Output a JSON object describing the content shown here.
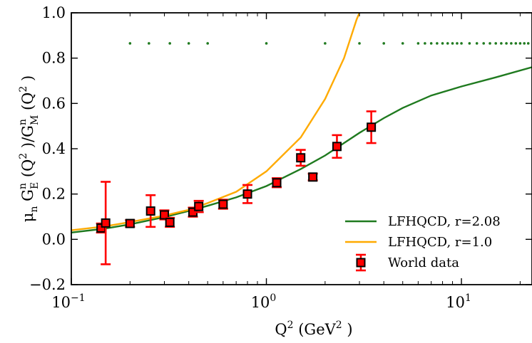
{
  "chart_data": {
    "type": "scatter",
    "x_scale": "log",
    "xlim": [
      0.1,
      23
    ],
    "ylim": [
      -0.2,
      1.0
    ],
    "grid": false,
    "legend_position": "lower-right",
    "xlabel": {
      "main": "Q",
      "sup1": "2",
      "mid": " (GeV",
      "sup2": "2",
      "end": " )"
    },
    "ylabel": "μn GE^n (Q²) / GM^n (Q²)",
    "ylabel_parts": {
      "mu": "μ",
      "mu_sub": "n",
      "ge": "G",
      "ge_sup": "n",
      "ge_sub": "E",
      "ge_arg": "(Q",
      "ge_arg_sup": "2",
      "ge_arg_end": " )/",
      "gm": "G",
      "gm_sup": "n",
      "gm_sub": "M",
      "gm_arg": "(Q",
      "gm_arg_sup": "2",
      "gm_arg_end": " )"
    },
    "x_ticks": [
      {
        "value": 0.1,
        "base": "10",
        "exp": "−1"
      },
      {
        "value": 1.0,
        "base": "10",
        "exp": "0"
      },
      {
        "value": 10.0,
        "base": "10",
        "exp": "1"
      }
    ],
    "y_ticks": [
      {
        "value": -0.2,
        "label": "−0.2"
      },
      {
        "value": 0.0,
        "label": "0.0"
      },
      {
        "value": 0.2,
        "label": "0.2"
      },
      {
        "value": 0.4,
        "label": "0.4"
      },
      {
        "value": 0.6,
        "label": "0.6"
      },
      {
        "value": 0.8,
        "label": "0.8"
      },
      {
        "value": 1.0,
        "label": "1.0"
      }
    ],
    "series": [
      {
        "name": "LFHQCD, r=2.08",
        "kind": "line",
        "color": "#1f7a1f",
        "points": [
          [
            0.1,
            0.03
          ],
          [
            0.15,
            0.048
          ],
          [
            0.2,
            0.066
          ],
          [
            0.3,
            0.098
          ],
          [
            0.4,
            0.125
          ],
          [
            0.5,
            0.148
          ],
          [
            0.7,
            0.185
          ],
          [
            1.0,
            0.235
          ],
          [
            1.5,
            0.31
          ],
          [
            2.0,
            0.37
          ],
          [
            2.5,
            0.425
          ],
          [
            3.0,
            0.47
          ],
          [
            4.0,
            0.535
          ],
          [
            5.0,
            0.58
          ],
          [
            7.0,
            0.635
          ],
          [
            10.0,
            0.675
          ],
          [
            15.0,
            0.715
          ],
          [
            23.0,
            0.76
          ]
        ]
      },
      {
        "name": "LFHQCD, r=1.0",
        "kind": "line",
        "color": "#ffaa00",
        "points": [
          [
            0.1,
            0.04
          ],
          [
            0.15,
            0.058
          ],
          [
            0.2,
            0.076
          ],
          [
            0.3,
            0.105
          ],
          [
            0.4,
            0.13
          ],
          [
            0.5,
            0.16
          ],
          [
            0.7,
            0.21
          ],
          [
            1.0,
            0.3
          ],
          [
            1.5,
            0.45
          ],
          [
            2.0,
            0.62
          ],
          [
            2.5,
            0.8
          ],
          [
            2.9,
            0.97
          ],
          [
            3.0,
            1.0
          ]
        ]
      },
      {
        "name": "World data",
        "kind": "errorbar",
        "marker_color": "#ff0000",
        "edge_color": "#000000",
        "error_color": "#ff0000",
        "points": [
          {
            "x": 0.142,
            "y": 0.05,
            "err": 0.02
          },
          {
            "x": 0.15,
            "y": 0.072,
            "err": 0.182
          },
          {
            "x": 0.2,
            "y": 0.07,
            "err": 0.015
          },
          {
            "x": 0.255,
            "y": 0.125,
            "err": 0.07
          },
          {
            "x": 0.3,
            "y": 0.108,
            "err": 0.02
          },
          {
            "x": 0.32,
            "y": 0.075,
            "err": 0.02
          },
          {
            "x": 0.42,
            "y": 0.12,
            "err": 0.02
          },
          {
            "x": 0.45,
            "y": 0.145,
            "err": 0.025
          },
          {
            "x": 0.6,
            "y": 0.155,
            "err": 0.02
          },
          {
            "x": 0.8,
            "y": 0.2,
            "err": 0.04
          },
          {
            "x": 1.13,
            "y": 0.25,
            "err": 0.02
          },
          {
            "x": 1.5,
            "y": 0.36,
            "err": 0.035
          },
          {
            "x": 1.73,
            "y": 0.275,
            "err": 0.015
          },
          {
            "x": 2.3,
            "y": 0.41,
            "err": 0.05
          },
          {
            "x": 3.45,
            "y": 0.495,
            "err": 0.07
          }
        ]
      },
      {
        "kind": "dotted",
        "color": "#1f7a1f",
        "y": 0.865,
        "x": [
          0.2,
          0.25,
          0.32,
          0.4,
          0.5,
          1.0,
          2.0,
          3.0,
          4.0,
          5.0,
          6.0,
          6.5,
          7.0,
          7.5,
          8.0,
          8.5,
          9.0,
          9.5,
          10.0,
          11.0,
          12.0,
          13.0,
          14.0,
          15.0,
          16.0,
          17.0,
          18.0,
          19.0,
          20.0,
          21.0,
          22.0
        ]
      }
    ]
  }
}
